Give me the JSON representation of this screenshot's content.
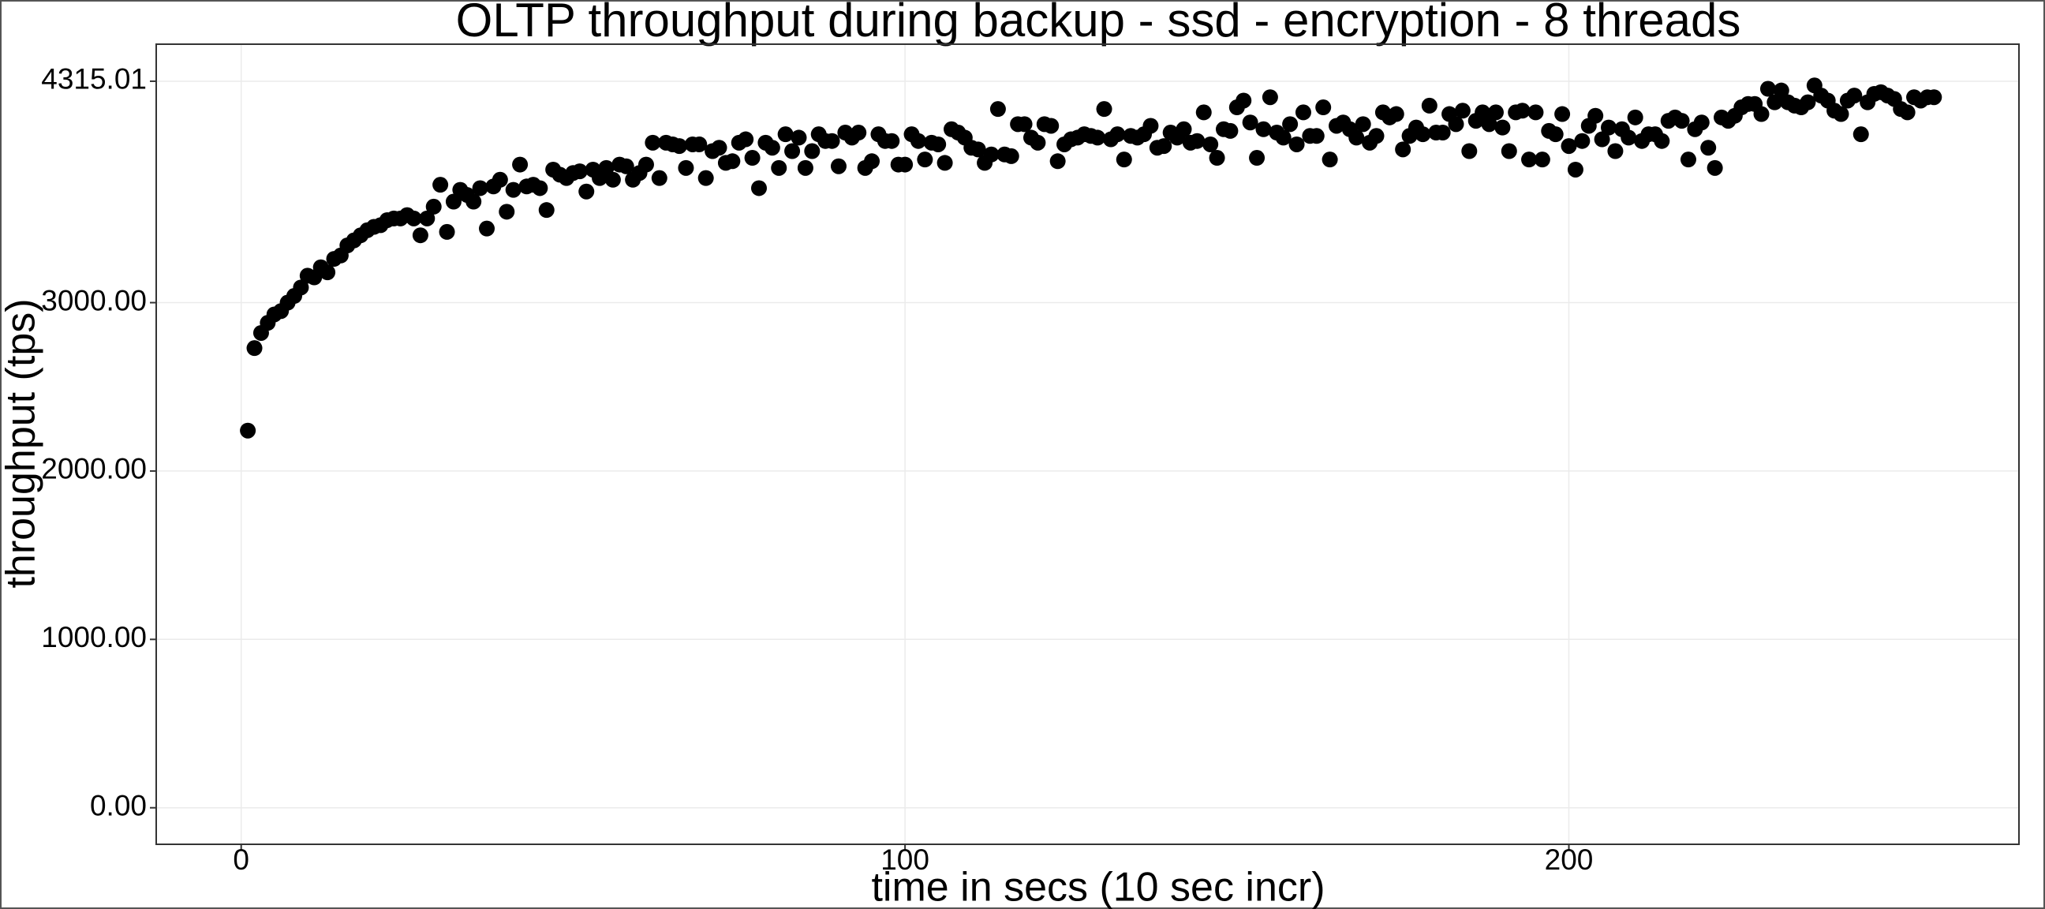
{
  "chart_data": {
    "type": "scatter",
    "title": "OLTP throughput during backup -  ssd  -  encryption  -  8  threads",
    "x_label": "time in secs (10 sec incr)",
    "y_label": "throughput (tps)",
    "color": "#000000",
    "grid": true,
    "xlim": [
      -12.8,
      267.8
    ],
    "ylim": [
      -217,
      4535
    ],
    "xticks": [
      0,
      100,
      200
    ],
    "yticks": [
      {
        "value": 0,
        "label": "0.00"
      },
      {
        "value": 1000,
        "label": "1000.00"
      },
      {
        "value": 2000,
        "label": "2000.00"
      },
      {
        "value": 3000,
        "label": "3000.00"
      },
      {
        "value": 4315.01,
        "label": "4315.01"
      }
    ],
    "x": [
      1,
      2,
      3,
      4,
      5,
      6,
      7,
      8,
      9,
      10,
      11,
      12,
      13,
      14,
      15,
      16,
      17,
      18,
      19,
      20,
      21,
      22,
      23,
      24,
      25,
      26,
      27,
      28,
      29,
      30,
      31,
      32,
      33,
      34,
      35,
      36,
      37,
      38,
      39,
      40,
      41,
      42,
      43,
      44,
      45,
      46,
      47,
      48,
      49,
      50,
      51,
      52,
      53,
      54,
      55,
      56,
      57,
      58,
      59,
      60,
      61,
      62,
      63,
      64,
      65,
      66,
      67,
      68,
      69,
      70,
      71,
      72,
      73,
      74,
      75,
      76,
      77,
      78,
      79,
      80,
      81,
      82,
      83,
      84,
      85,
      86,
      87,
      88,
      89,
      90,
      91,
      92,
      93,
      94,
      95,
      96,
      97,
      98,
      99,
      100,
      101,
      102,
      103,
      104,
      105,
      106,
      107,
      108,
      109,
      110,
      111,
      112,
      113,
      114,
      115,
      116,
      117,
      118,
      119,
      120,
      121,
      122,
      123,
      124,
      125,
      126,
      127,
      128,
      129,
      130,
      131,
      132,
      133,
      134,
      135,
      136,
      137,
      138,
      139,
      140,
      141,
      142,
      143,
      144,
      145,
      146,
      147,
      148,
      149,
      150,
      151,
      152,
      153,
      154,
      155,
      156,
      157,
      158,
      159,
      160,
      161,
      162,
      163,
      164,
      165,
      166,
      167,
      168,
      169,
      170,
      171,
      172,
      173,
      174,
      175,
      176,
      177,
      178,
      179,
      180,
      181,
      182,
      183,
      184,
      185,
      186,
      187,
      188,
      189,
      190,
      191,
      192,
      193,
      194,
      195,
      196,
      197,
      198,
      199,
      200,
      201,
      202,
      203,
      204,
      205,
      206,
      207,
      208,
      209,
      210,
      211,
      212,
      213,
      214,
      215,
      216,
      217,
      218,
      219,
      220,
      221,
      222,
      223,
      224,
      225,
      226,
      227,
      228,
      229,
      230,
      231,
      232,
      233,
      234,
      235,
      236,
      237,
      238,
      239,
      240,
      241,
      242,
      243,
      244,
      245,
      246,
      247,
      248,
      249,
      250,
      251,
      252,
      253,
      254,
      255
    ],
    "values": [
      2240,
      2730,
      2820,
      2880,
      2930,
      2950,
      3000,
      3040,
      3090,
      3160,
      3150,
      3210,
      3180,
      3260,
      3280,
      3340,
      3370,
      3400,
      3430,
      3450,
      3460,
      3490,
      3500,
      3500,
      3520,
      3500,
      3400,
      3500,
      3570,
      3700,
      3420,
      3600,
      3670,
      3640,
      3600,
      3680,
      3440,
      3690,
      3730,
      3540,
      3670,
      3820,
      3690,
      3700,
      3680,
      3550,
      3790,
      3760,
      3740,
      3770,
      3780,
      3660,
      3790,
      3740,
      3800,
      3730,
      3820,
      3810,
      3730,
      3770,
      3820,
      3950,
      3740,
      3950,
      3940,
      3930,
      3800,
      3940,
      3940,
      3740,
      3900,
      3920,
      3830,
      3840,
      3950,
      3970,
      3860,
      3680,
      3950,
      3920,
      3800,
      4000,
      3900,
      3980,
      3800,
      3900,
      4000,
      3960,
      3960,
      3810,
      4010,
      3980,
      4010,
      3800,
      3840,
      4000,
      3960,
      3960,
      3820,
      3820,
      4000,
      3960,
      3850,
      3950,
      3940,
      3830,
      4030,
      4010,
      3980,
      3920,
      3910,
      3830,
      3880,
      4150,
      3880,
      3870,
      4060,
      4060,
      3980,
      3950,
      4060,
      4050,
      3840,
      3940,
      3970,
      3980,
      4000,
      3990,
      3980,
      4150,
      3970,
      4000,
      3850,
      3990,
      3980,
      4000,
      4050,
      3920,
      3930,
      4010,
      3980,
      4030,
      3950,
      3960,
      4130,
      3940,
      3860,
      4030,
      4020,
      4160,
      4200,
      4070,
      3860,
      4030,
      4220,
      4010,
      3980,
      4060,
      3940,
      4130,
      3990,
      3990,
      4160,
      3850,
      4050,
      4070,
      4030,
      3980,
      4060,
      3950,
      3990,
      4130,
      4100,
      4120,
      3910,
      3990,
      4040,
      4000,
      4170,
      4010,
      4010,
      4120,
      4060,
      4140,
      3900,
      4080,
      4130,
      4060,
      4130,
      4040,
      3900,
      4130,
      4140,
      3850,
      4130,
      3850,
      4020,
      4000,
      4120,
      3930,
      3790,
      3960,
      4050,
      4110,
      3970,
      4040,
      3900,
      4030,
      3980,
      4100,
      3960,
      4000,
      4000,
      3960,
      4080,
      4100,
      4080,
      3850,
      4030,
      4070,
      3920,
      3800,
      4100,
      4080,
      4110,
      4160,
      4180,
      4180,
      4120,
      4270,
      4190,
      4260,
      4190,
      4170,
      4160,
      4190,
      4290,
      4230,
      4200,
      4140,
      4120,
      4200,
      4230,
      4000,
      4190,
      4240,
      4250,
      4230,
      4210,
      4150,
      4130,
      4220,
      4200,
      4220,
      4220
    ]
  }
}
